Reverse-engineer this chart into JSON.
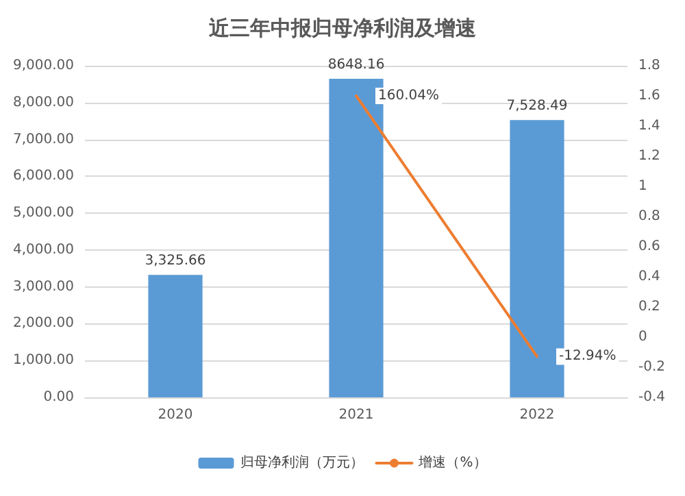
{
  "chart_data": {
    "type": "bar",
    "title": "近三年中报归母净利润及增速",
    "categories": [
      "2020",
      "2021",
      "2022"
    ],
    "series": [
      {
        "name": "归母净利润（万元）",
        "color": "#5b9bd5",
        "values": [
          3325.66,
          8648.16,
          7528.49
        ],
        "value_labels": [
          "3,325.66",
          "8648.16",
          "7,528.49"
        ]
      },
      {
        "name": "增速（%）",
        "type": "line",
        "axis": "y2",
        "color": "#ed7d31",
        "values": [
          null,
          1.6004,
          -0.1294
        ],
        "value_labels": [
          null,
          "160.04%",
          "-12.94%"
        ]
      }
    ],
    "ylim": [
      0,
      9000
    ],
    "yticks": [
      {
        "value": 0,
        "label": "0.00"
      },
      {
        "value": 1000,
        "label": "1,000.00"
      },
      {
        "value": 2000,
        "label": "2,000.00"
      },
      {
        "value": 3000,
        "label": "3,000.00"
      },
      {
        "value": 4000,
        "label": "4,000.00"
      },
      {
        "value": 5000,
        "label": "5,000.00"
      },
      {
        "value": 6000,
        "label": "6,000.00"
      },
      {
        "value": 7000,
        "label": "7,000.00"
      },
      {
        "value": 8000,
        "label": "8,000.00"
      },
      {
        "value": 9000,
        "label": "9,000.00"
      }
    ],
    "y2lim": [
      -0.4,
      1.8
    ],
    "y2ticks": [
      -0.4,
      -0.2,
      0,
      0.2,
      0.4,
      0.6,
      0.8,
      1,
      1.2,
      1.4,
      1.6,
      1.8
    ],
    "grid": "y",
    "legend": "bottom",
    "marker": "none"
  }
}
